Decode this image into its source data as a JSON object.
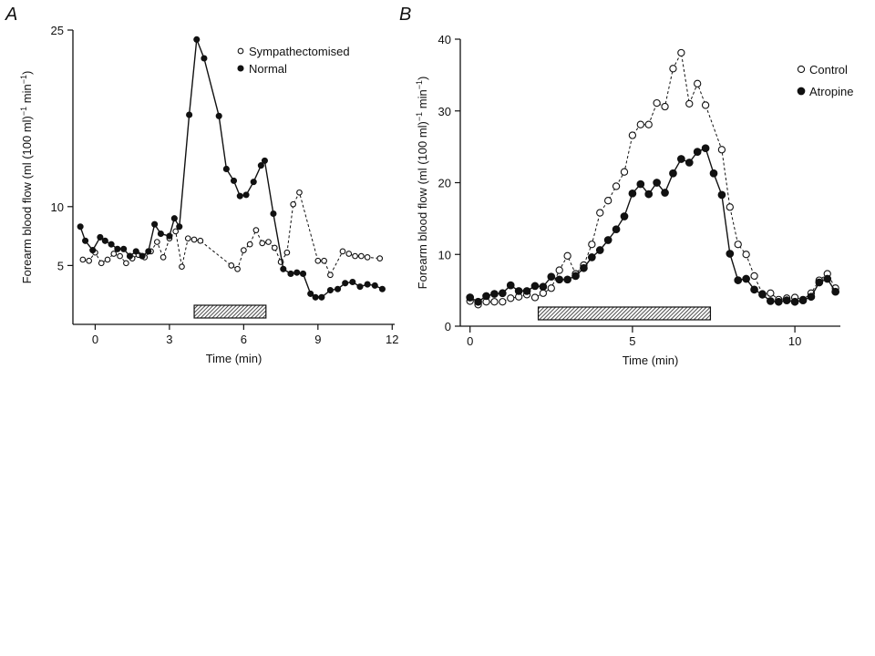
{
  "panels": {
    "a": {
      "letter": "A"
    },
    "b": {
      "letter": "B"
    }
  },
  "chart_data": [
    {
      "type": "line",
      "panel": "A",
      "xlabel": "Time (min)",
      "ylabel_parts": [
        "Forearm blood flow (ml (100 ml)",
        "−1",
        " min",
        "−1",
        ")"
      ],
      "xlim": [
        -0.9,
        12.1
      ],
      "ylim": [
        0,
        25
      ],
      "xticks": [
        0,
        3,
        6,
        9,
        12
      ],
      "yticks": [
        5,
        10,
        25
      ],
      "legend_position": "top-right",
      "stimulus_bar": {
        "start": 4.0,
        "end": 6.9
      },
      "series": [
        {
          "name": "Sympathectomised",
          "marker": "open-circle",
          "line": "dashed",
          "points": [
            [
              -0.5,
              5.5
            ],
            [
              -0.25,
              5.4
            ],
            [
              0.0,
              6.1
            ],
            [
              0.25,
              5.2
            ],
            [
              0.5,
              5.5
            ],
            [
              0.75,
              6.0
            ],
            [
              1.0,
              5.8
            ],
            [
              1.25,
              5.2
            ],
            [
              1.5,
              5.6
            ],
            [
              1.75,
              5.9
            ],
            [
              2.0,
              5.7
            ],
            [
              2.25,
              6.2
            ],
            [
              2.5,
              7.0
            ],
            [
              2.75,
              5.7
            ],
            [
              3.0,
              7.3
            ],
            [
              3.25,
              7.9
            ],
            [
              3.5,
              4.9
            ],
            [
              3.75,
              7.3
            ],
            [
              4.0,
              7.2
            ],
            [
              4.25,
              7.1
            ],
            [
              5.5,
              5.0
            ],
            [
              5.75,
              4.7
            ],
            [
              6.0,
              6.3
            ],
            [
              6.25,
              6.8
            ],
            [
              6.5,
              8.0
            ],
            [
              6.75,
              6.9
            ],
            [
              7.0,
              7.0
            ],
            [
              7.25,
              6.5
            ],
            [
              7.5,
              5.3
            ],
            [
              7.75,
              6.1
            ],
            [
              8.0,
              10.2
            ],
            [
              8.25,
              11.2
            ],
            [
              9.0,
              5.4
            ],
            [
              9.25,
              5.4
            ],
            [
              9.5,
              4.2
            ],
            [
              10.0,
              6.2
            ],
            [
              10.25,
              6.0
            ],
            [
              10.5,
              5.8
            ],
            [
              10.75,
              5.8
            ],
            [
              11.0,
              5.7
            ],
            [
              11.5,
              5.6
            ]
          ]
        },
        {
          "name": "Normal",
          "marker": "filled-circle",
          "line": "solid",
          "points": [
            [
              -0.6,
              8.3
            ],
            [
              -0.4,
              7.1
            ],
            [
              -0.1,
              6.3
            ],
            [
              0.2,
              7.4
            ],
            [
              0.4,
              7.1
            ],
            [
              0.65,
              6.8
            ],
            [
              0.9,
              6.4
            ],
            [
              1.15,
              6.4
            ],
            [
              1.4,
              5.8
            ],
            [
              1.65,
              6.2
            ],
            [
              1.9,
              5.8
            ],
            [
              2.15,
              6.2
            ],
            [
              2.4,
              8.5
            ],
            [
              2.65,
              7.7
            ],
            [
              3.0,
              7.5
            ],
            [
              3.2,
              9.0
            ],
            [
              3.4,
              8.3
            ],
            [
              3.8,
              17.8
            ],
            [
              4.1,
              24.2
            ],
            [
              4.4,
              22.6
            ],
            [
              5.0,
              17.7
            ],
            [
              5.3,
              13.2
            ],
            [
              5.6,
              12.2
            ],
            [
              5.85,
              10.9
            ],
            [
              6.1,
              11.0
            ],
            [
              6.4,
              12.1
            ],
            [
              6.7,
              13.5
            ],
            [
              6.85,
              13.9
            ],
            [
              7.2,
              9.4
            ],
            [
              7.6,
              4.7
            ],
            [
              7.9,
              4.3
            ],
            [
              8.15,
              4.4
            ],
            [
              8.4,
              4.3
            ],
            [
              8.7,
              2.6
            ],
            [
              8.9,
              2.3
            ],
            [
              9.15,
              2.3
            ],
            [
              9.5,
              2.9
            ],
            [
              9.8,
              3.0
            ],
            [
              10.1,
              3.5
            ],
            [
              10.4,
              3.6
            ],
            [
              10.7,
              3.2
            ],
            [
              11.0,
              3.4
            ],
            [
              11.3,
              3.3
            ],
            [
              11.6,
              3.0
            ]
          ]
        }
      ]
    },
    {
      "type": "line",
      "panel": "B",
      "xlabel": "Time (min)",
      "ylabel_parts": [
        "Forearm blood flow (ml (100 ml)",
        "−1",
        " min",
        "−1",
        ")"
      ],
      "xlim": [
        -0.3,
        11.4
      ],
      "ylim": [
        0,
        40
      ],
      "xticks": [
        0,
        5,
        10
      ],
      "yticks": [
        0,
        10,
        20,
        30,
        40
      ],
      "legend_position": "top-right",
      "stimulus_bar": {
        "start": 2.1,
        "end": 7.4
      },
      "series": [
        {
          "name": "Control",
          "marker": "open-circle",
          "line": "dashed",
          "points": [
            [
              0.0,
              3.5
            ],
            [
              0.25,
              3.0
            ],
            [
              0.5,
              3.4
            ],
            [
              0.75,
              3.4
            ],
            [
              1.0,
              3.4
            ],
            [
              1.25,
              3.9
            ],
            [
              1.5,
              4.1
            ],
            [
              1.75,
              4.4
            ],
            [
              2.0,
              4.0
            ],
            [
              2.25,
              4.6
            ],
            [
              2.5,
              5.3
            ],
            [
              2.75,
              7.8
            ],
            [
              3.0,
              9.8
            ],
            [
              3.25,
              7.3
            ],
            [
              3.5,
              8.5
            ],
            [
              3.75,
              11.4
            ],
            [
              4.0,
              15.8
            ],
            [
              4.25,
              17.5
            ],
            [
              4.5,
              19.5
            ],
            [
              4.75,
              21.5
            ],
            [
              5.0,
              26.6
            ],
            [
              5.25,
              28.1
            ],
            [
              5.5,
              28.1
            ],
            [
              5.75,
              31.1
            ],
            [
              6.0,
              30.6
            ],
            [
              6.25,
              35.9
            ],
            [
              6.5,
              38.1
            ],
            [
              6.75,
              31.0
            ],
            [
              7.0,
              33.8
            ],
            [
              7.25,
              30.8
            ],
            [
              7.75,
              24.6
            ],
            [
              8.0,
              16.6
            ],
            [
              8.25,
              11.4
            ],
            [
              8.5,
              10.0
            ],
            [
              8.75,
              7.0
            ],
            [
              9.0,
              4.5
            ],
            [
              9.25,
              4.6
            ],
            [
              9.5,
              3.7
            ],
            [
              9.75,
              3.9
            ],
            [
              10.0,
              4.0
            ],
            [
              10.25,
              3.7
            ],
            [
              10.5,
              4.6
            ],
            [
              10.75,
              6.4
            ],
            [
              11.0,
              7.3
            ],
            [
              11.25,
              5.3
            ]
          ]
        },
        {
          "name": "Atropine",
          "marker": "filled-circle",
          "line": "solid",
          "points": [
            [
              0.0,
              4.0
            ],
            [
              0.25,
              3.4
            ],
            [
              0.5,
              4.2
            ],
            [
              0.75,
              4.5
            ],
            [
              1.0,
              4.6
            ],
            [
              1.25,
              5.7
            ],
            [
              1.5,
              4.9
            ],
            [
              1.75,
              4.9
            ],
            [
              2.0,
              5.6
            ],
            [
              2.25,
              5.5
            ],
            [
              2.5,
              6.9
            ],
            [
              2.75,
              6.5
            ],
            [
              3.0,
              6.5
            ],
            [
              3.25,
              7.0
            ],
            [
              3.5,
              8.1
            ],
            [
              3.75,
              9.6
            ],
            [
              4.0,
              10.6
            ],
            [
              4.25,
              12.0
            ],
            [
              4.5,
              13.5
            ],
            [
              4.75,
              15.3
            ],
            [
              5.0,
              18.5
            ],
            [
              5.25,
              19.8
            ],
            [
              5.5,
              18.4
            ],
            [
              5.75,
              20.0
            ],
            [
              6.0,
              18.6
            ],
            [
              6.25,
              21.3
            ],
            [
              6.5,
              23.3
            ],
            [
              6.75,
              22.8
            ],
            [
              7.0,
              24.3
            ],
            [
              7.25,
              24.8
            ],
            [
              7.5,
              21.3
            ],
            [
              7.75,
              18.3
            ],
            [
              8.0,
              10.1
            ],
            [
              8.25,
              6.4
            ],
            [
              8.5,
              6.6
            ],
            [
              8.75,
              5.1
            ],
            [
              9.0,
              4.4
            ],
            [
              9.25,
              3.5
            ],
            [
              9.5,
              3.4
            ],
            [
              9.75,
              3.6
            ],
            [
              10.0,
              3.4
            ],
            [
              10.25,
              3.6
            ],
            [
              10.5,
              4.1
            ],
            [
              10.75,
              6.1
            ],
            [
              11.0,
              6.6
            ],
            [
              11.25,
              4.8
            ]
          ]
        }
      ]
    }
  ]
}
